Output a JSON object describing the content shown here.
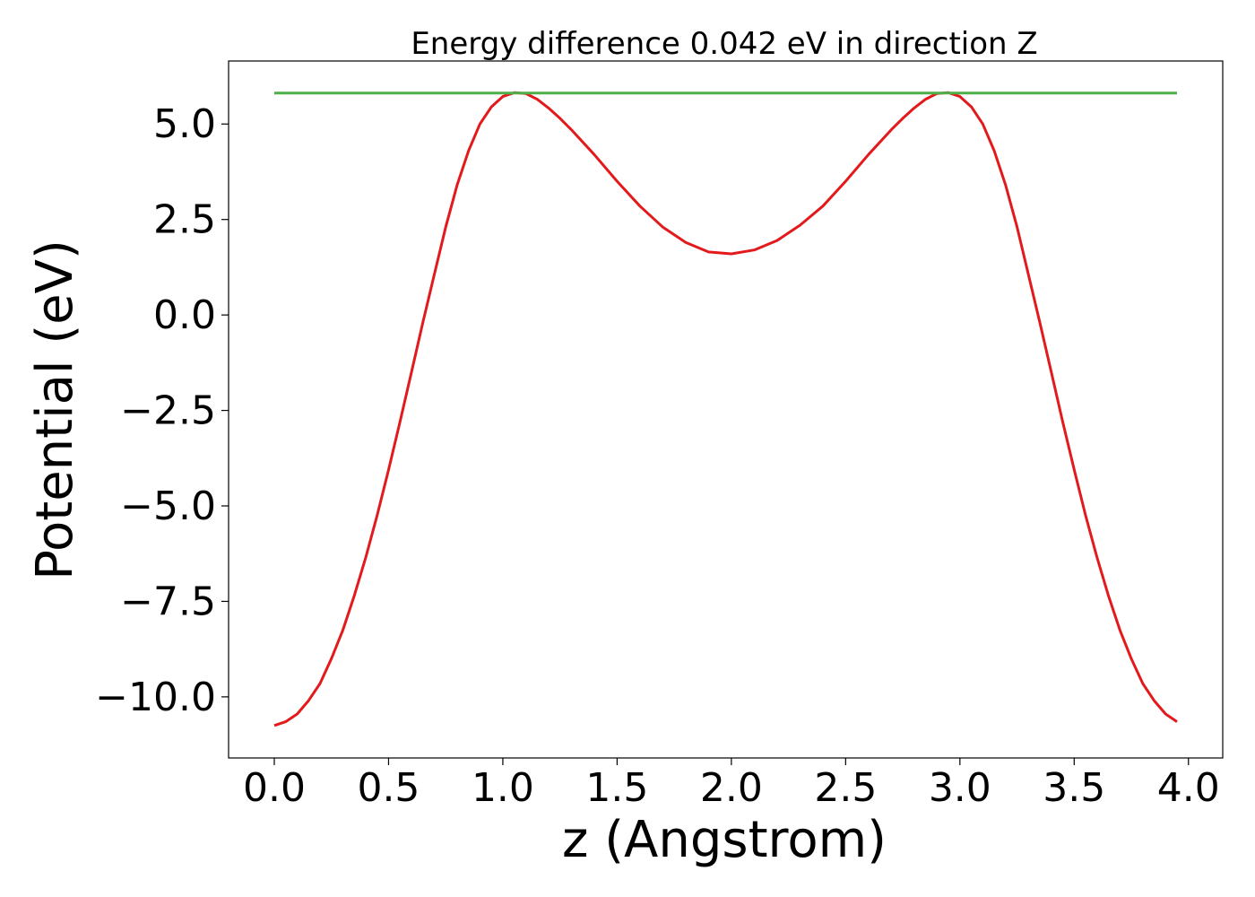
{
  "chart_data": {
    "type": "line",
    "title": "Energy difference 0.042 eV in direction Z",
    "xlabel": "z (Angstrom)",
    "ylabel": "Potential (eV)",
    "xlim": [
      -0.2,
      4.15
    ],
    "ylim": [
      -11.6,
      6.65
    ],
    "xticks": [
      0.0,
      0.5,
      1.0,
      1.5,
      2.0,
      2.5,
      3.0,
      3.5,
      4.0
    ],
    "xtick_labels": [
      "0.0",
      "0.5",
      "1.0",
      "1.5",
      "2.0",
      "2.5",
      "3.0",
      "3.5",
      "4.0"
    ],
    "yticks": [
      5.0,
      2.5,
      0.0,
      -2.5,
      -5.0,
      -7.5,
      -10.0
    ],
    "ytick_labels": [
      "5.0",
      "2.5",
      "0.0",
      "−2.5",
      "−5.0",
      "−7.5",
      "−10.0"
    ],
    "grid": false,
    "series": [
      {
        "color": "#e31a1c",
        "x": [
          0.0,
          0.05,
          0.1,
          0.15,
          0.2,
          0.25,
          0.3,
          0.35,
          0.4,
          0.45,
          0.5,
          0.55,
          0.6,
          0.65,
          0.7,
          0.75,
          0.8,
          0.85,
          0.9,
          0.95,
          1.0,
          1.05,
          1.1,
          1.15,
          1.2,
          1.25,
          1.3,
          1.4,
          1.5,
          1.6,
          1.7,
          1.8,
          1.9,
          2.0,
          2.1,
          2.2,
          2.3,
          2.4,
          2.5,
          2.6,
          2.7,
          2.75,
          2.8,
          2.85,
          2.9,
          2.95,
          3.0,
          3.05,
          3.1,
          3.15,
          3.2,
          3.25,
          3.3,
          3.35,
          3.4,
          3.45,
          3.5,
          3.55,
          3.6,
          3.65,
          3.7,
          3.75,
          3.8,
          3.85,
          3.9,
          3.95
        ],
        "values": [
          -10.75,
          -10.65,
          -10.45,
          -10.1,
          -9.65,
          -9.0,
          -8.25,
          -7.35,
          -6.35,
          -5.25,
          -4.05,
          -2.8,
          -1.5,
          -0.2,
          1.05,
          2.3,
          3.4,
          4.3,
          5.0,
          5.45,
          5.72,
          5.82,
          5.8,
          5.65,
          5.42,
          5.15,
          4.85,
          4.2,
          3.5,
          2.85,
          2.3,
          1.9,
          1.65,
          1.6,
          1.7,
          1.95,
          2.35,
          2.85,
          3.5,
          4.2,
          4.85,
          5.15,
          5.42,
          5.65,
          5.8,
          5.82,
          5.72,
          5.45,
          5.0,
          4.3,
          3.4,
          2.3,
          1.05,
          -0.2,
          -1.5,
          -2.8,
          -4.05,
          -5.25,
          -6.35,
          -7.35,
          -8.25,
          -9.0,
          -9.65,
          -10.1,
          -10.45,
          -10.65
        ]
      },
      {
        "color": "#4daf4a",
        "x": [
          0.0,
          3.95
        ],
        "values": [
          5.81,
          5.81
        ]
      }
    ]
  }
}
